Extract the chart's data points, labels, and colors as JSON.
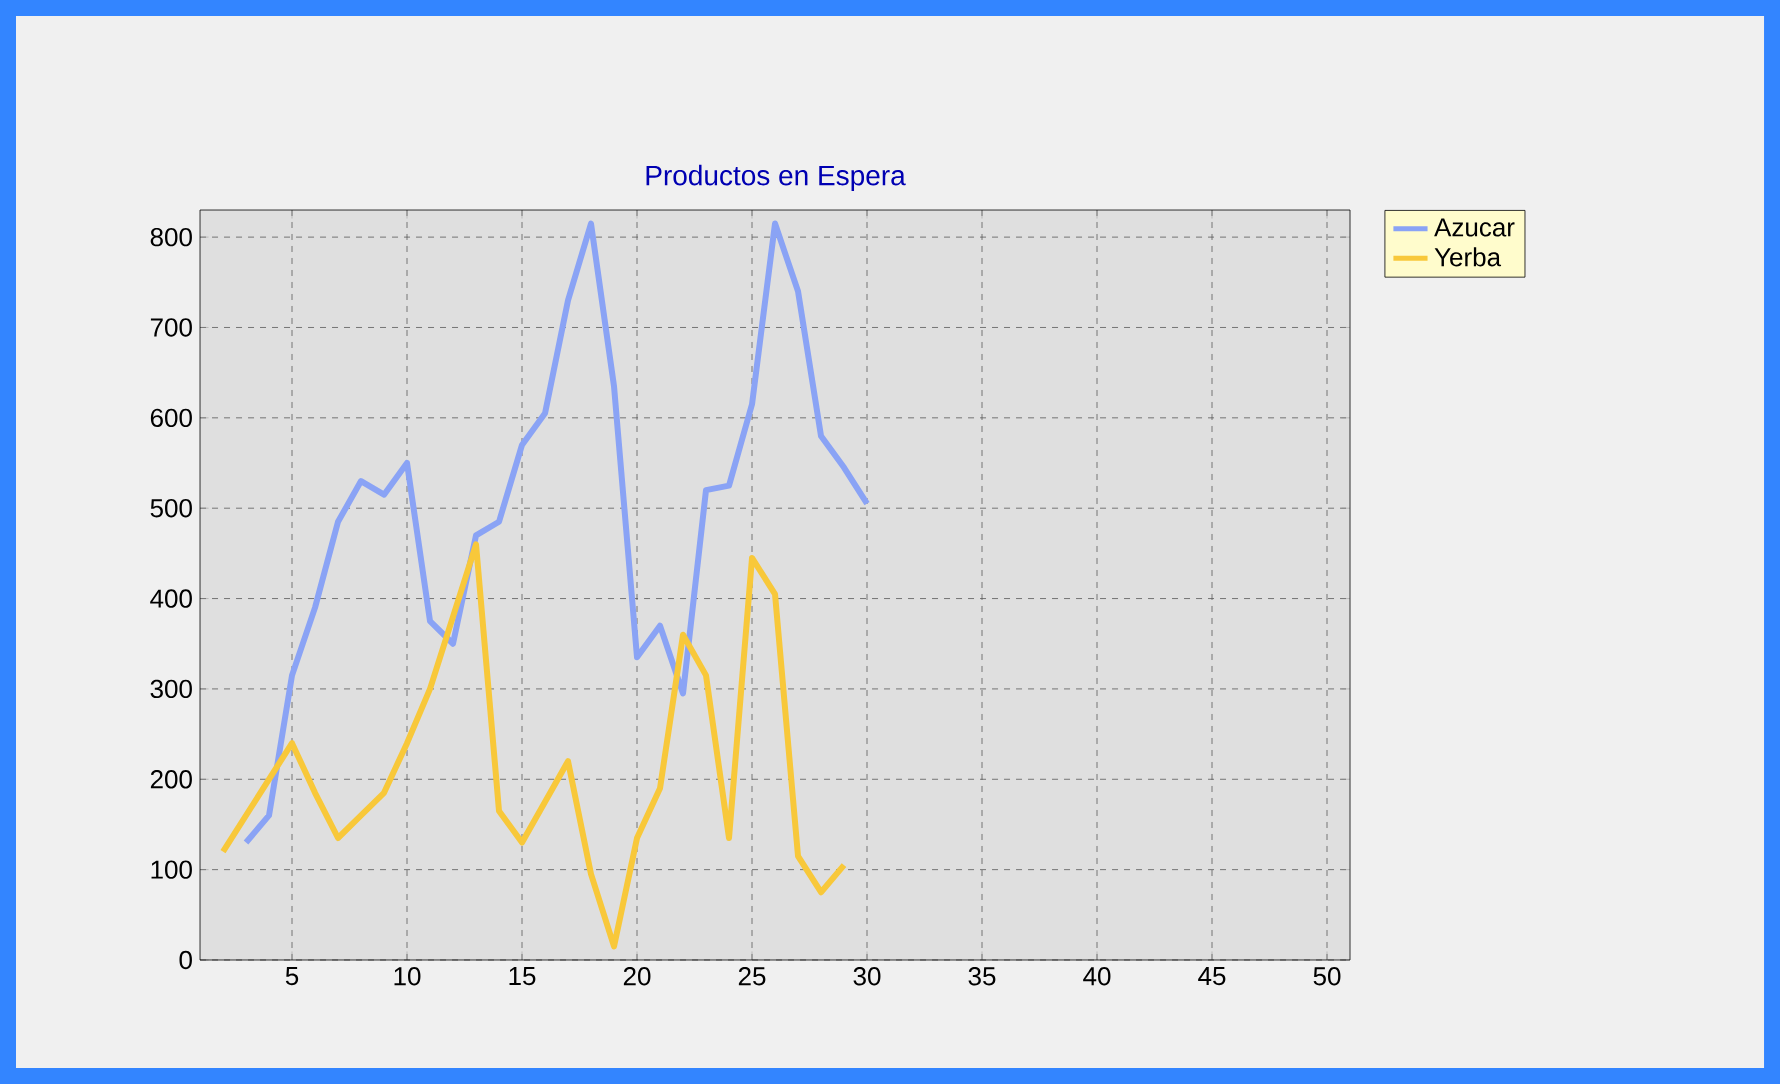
{
  "chart_data": {
    "type": "line",
    "title": "Productos en Espera",
    "x": [
      2,
      3,
      4,
      5,
      6,
      7,
      8,
      9,
      10,
      11,
      12,
      13,
      14,
      15,
      16,
      17,
      18,
      19,
      20,
      21,
      22,
      23,
      24,
      25,
      26,
      27,
      28,
      29,
      30
    ],
    "series": [
      {
        "name": "Azucar",
        "color": "#8aa3f5",
        "values": [
          null,
          130,
          160,
          315,
          390,
          485,
          530,
          515,
          550,
          375,
          350,
          470,
          485,
          570,
          605,
          730,
          815,
          635,
          335,
          370,
          295,
          520,
          525,
          615,
          815,
          740,
          580,
          545,
          505
        ]
      },
      {
        "name": "Yerba",
        "color": "#f8c83a",
        "values": [
          120,
          160,
          200,
          240,
          185,
          135,
          160,
          185,
          240,
          300,
          380,
          460,
          165,
          130,
          175,
          220,
          95,
          15,
          135,
          190,
          360,
          315,
          135,
          445,
          405,
          115,
          75,
          105,
          null
        ]
      }
    ],
    "xlim": [
      1,
      51
    ],
    "xticks": [
      5,
      10,
      15,
      20,
      25,
      30,
      35,
      40,
      45,
      50
    ],
    "ylim": [
      0,
      830
    ],
    "yticks": [
      0,
      100,
      200,
      300,
      400,
      500,
      600,
      700,
      800
    ],
    "grid": true,
    "legend": "top right",
    "marker": "none",
    "line_style": "solid"
  }
}
